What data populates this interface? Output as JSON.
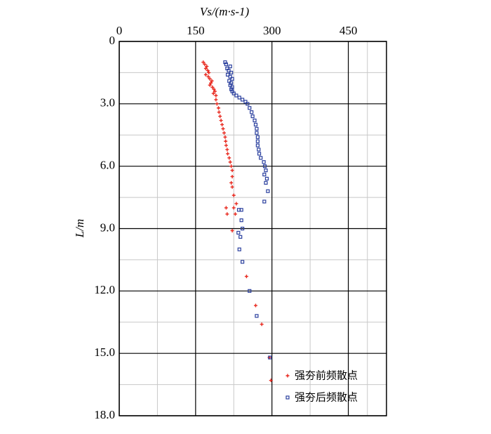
{
  "chart_data": {
    "type": "scatter",
    "x_label": "Vs/(m·s-1)",
    "y_label": "L/m",
    "xlim": [
      0,
      525
    ],
    "ylim": [
      0,
      18
    ],
    "y_inverted": true,
    "x_axis_position": "top",
    "xticks": [
      0,
      150,
      300,
      450
    ],
    "yticks": [
      0,
      {
        "value": 3,
        "label": "3.0"
      },
      {
        "value": 6,
        "label": "6.0"
      },
      {
        "value": 9,
        "label": "9.0"
      },
      {
        "value": 12,
        "label": "12.0"
      },
      {
        "value": 15,
        "label": "15.0"
      },
      {
        "value": 18,
        "label": "18.0"
      }
    ],
    "grid": true,
    "legend": "lower right",
    "series": [
      {
        "name": "强夯前频散点",
        "color": "#e8281e",
        "marker": "plus",
        "x": [
          165,
          168,
          172,
          170,
          174,
          176,
          170,
          175,
          178,
          182,
          180,
          178,
          183,
          186,
          188,
          185,
          190,
          190,
          192,
          195,
          196,
          198,
          200,
          202,
          204,
          206,
          208,
          209,
          210,
          212,
          213,
          216,
          218,
          220,
          222,
          222,
          220,
          222,
          225,
          230,
          210,
          225,
          212,
          228,
          222,
          250,
          268,
          280,
          295,
          298
        ],
        "values": [
          1.0,
          1.1,
          1.2,
          1.3,
          1.4,
          1.5,
          1.6,
          1.7,
          1.8,
          1.9,
          2.0,
          2.1,
          2.2,
          2.3,
          2.4,
          2.5,
          2.6,
          2.8,
          3.0,
          3.2,
          3.4,
          3.6,
          3.8,
          4.0,
          4.2,
          4.4,
          4.6,
          4.8,
          5.0,
          5.2,
          5.4,
          5.6,
          5.8,
          6.0,
          6.2,
          6.5,
          6.8,
          7.0,
          7.4,
          7.8,
          8.0,
          8.0,
          8.3,
          8.3,
          9.1,
          11.3,
          12.7,
          13.6,
          15.2,
          16.3
        ]
      },
      {
        "name": "强夯后频散点",
        "color": "#2a3f9e",
        "marker": "square",
        "x": [
          208,
          210,
          218,
          212,
          215,
          220,
          213,
          218,
          222,
          216,
          220,
          218,
          222,
          220,
          222,
          225,
          230,
          236,
          242,
          248,
          252,
          256,
          260,
          262,
          266,
          268,
          270,
          270,
          272,
          272,
          272,
          274,
          275,
          278,
          284,
          286,
          288,
          285,
          290,
          288,
          292,
          285,
          235,
          240,
          240,
          242,
          234,
          238,
          236,
          242,
          256,
          270,
          296
        ],
        "values": [
          1.0,
          1.1,
          1.2,
          1.3,
          1.4,
          1.5,
          1.6,
          1.7,
          1.8,
          1.9,
          2.0,
          2.1,
          2.2,
          2.3,
          2.4,
          2.5,
          2.6,
          2.7,
          2.8,
          2.9,
          3.0,
          3.2,
          3.4,
          3.6,
          3.8,
          4.0,
          4.2,
          4.4,
          4.6,
          4.8,
          5.0,
          5.2,
          5.4,
          5.6,
          5.8,
          6.0,
          6.2,
          6.4,
          6.6,
          6.8,
          7.2,
          7.7,
          8.1,
          8.1,
          8.6,
          9.0,
          9.2,
          9.4,
          10.0,
          10.6,
          12.0,
          13.2,
          15.2
        ]
      }
    ]
  }
}
